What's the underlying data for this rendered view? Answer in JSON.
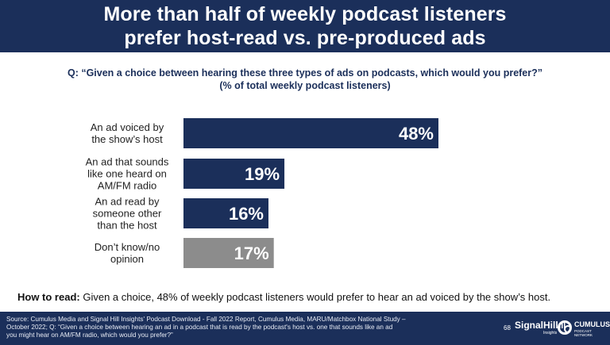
{
  "header": {
    "title_line1": "More than half of weekly podcast listeners",
    "title_line2": "prefer host-read vs. pre-produced ads"
  },
  "question": {
    "line1": "Q: “Given a choice between hearing these three types of ads on podcasts, which would you prefer?”",
    "line2": "(% of total weekly podcast listeners)"
  },
  "chart_data": {
    "type": "bar",
    "orientation": "horizontal",
    "categories": [
      [
        "An ad voiced by",
        "the show’s host"
      ],
      [
        "An ad that sounds",
        "like one heard on",
        "AM/FM radio"
      ],
      [
        "An ad read by",
        "someone other",
        "than the host"
      ],
      [
        "Don’t know/no",
        "opinion"
      ]
    ],
    "values": [
      48,
      19,
      16,
      17
    ],
    "value_labels": [
      "48%",
      "19%",
      "16%",
      "17%"
    ],
    "colors": [
      "#1b2f5a",
      "#1b2f5a",
      "#1b2f5a",
      "#8c8c8c"
    ],
    "grid": false,
    "legend": "none"
  },
  "how_to_read": {
    "label": "How to read:",
    "text": "Given a choice, 48% of weekly podcast listeners would prefer to hear an ad voiced by the show’s host."
  },
  "footer": {
    "source_line1": "Source: Cumulus Media and Signal Hill Insights' Podcast Download - Fall 2022 Report, Cumulus Media, MARU/Matchbox National Study –",
    "source_line2": "October 2022; Q: “Given a choice between hearing an ad in a podcast that is read by the podcast's host vs. one that sounds like an ad",
    "source_line3": "you might hear on AM/FM radio, which would you prefer?”",
    "page_number": "68",
    "signal_hill_logo": "SignalHill",
    "signal_hill_sub": "Insights",
    "cumulus_logo": "CUMULUS",
    "cumulus_sub": "PODCAST NETWORK"
  }
}
